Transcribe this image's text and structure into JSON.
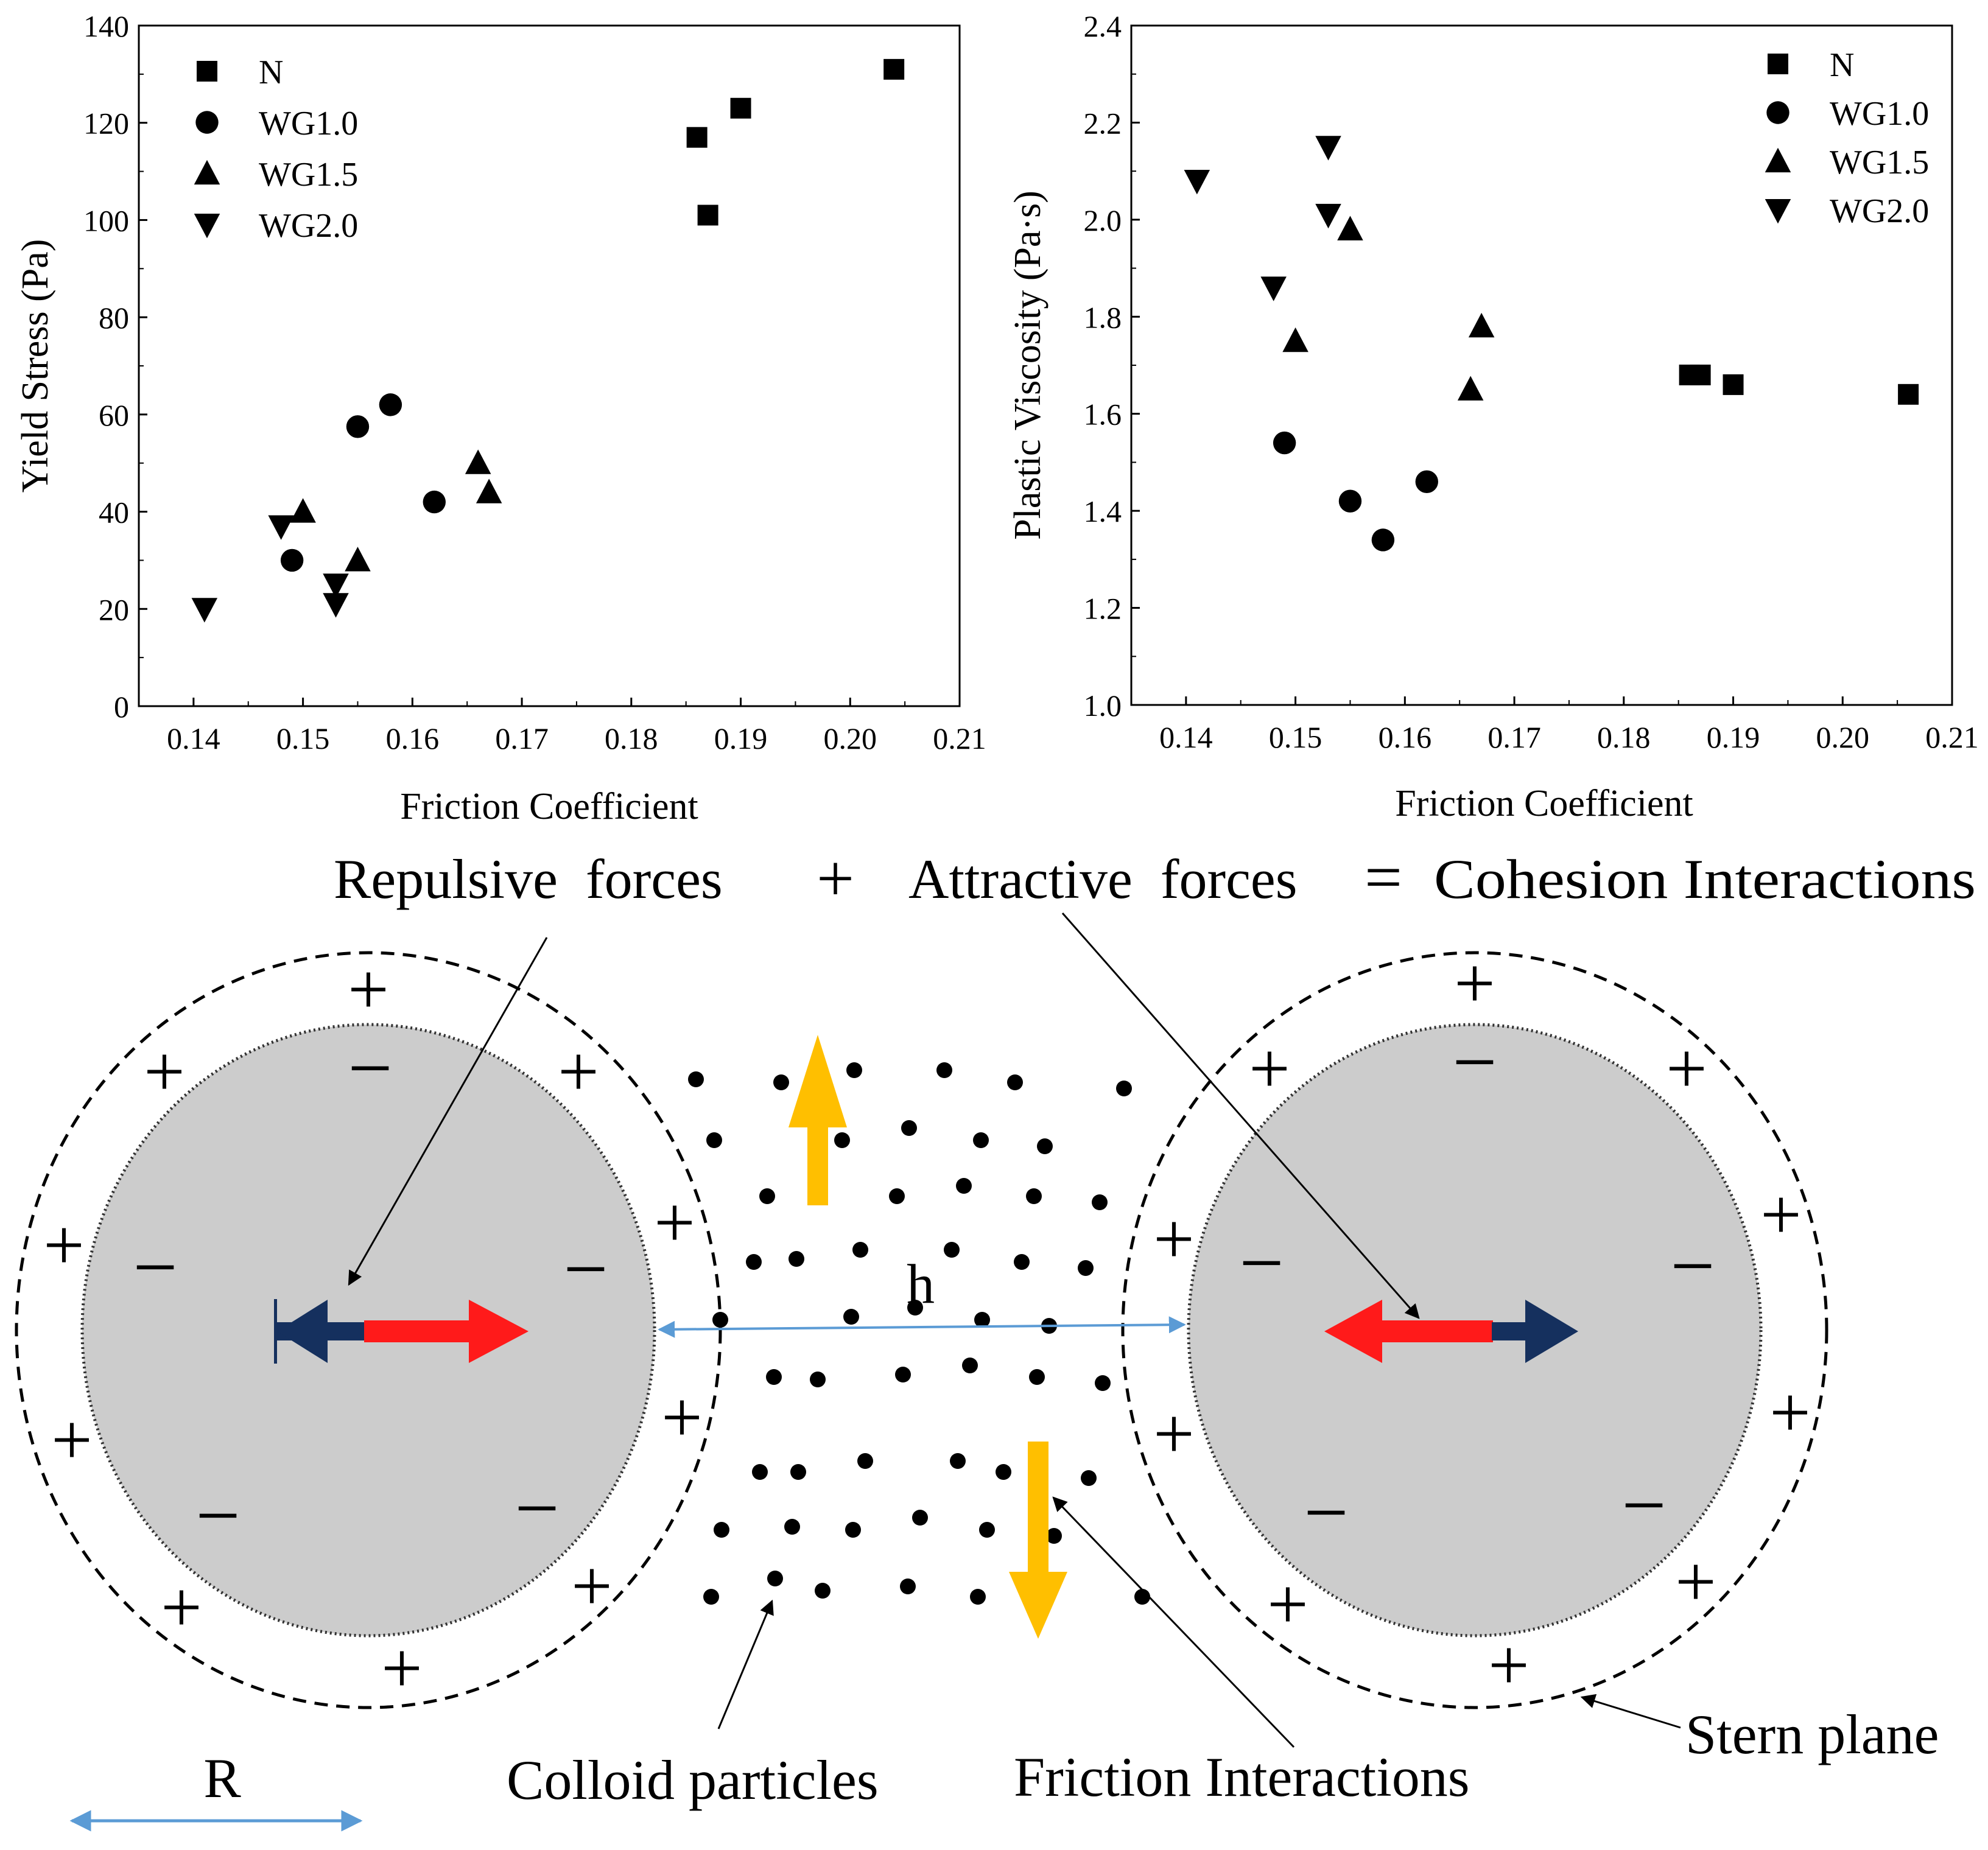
{
  "chart_data": [
    {
      "type": "scatter",
      "title": "",
      "xlabel": "Friction Coefficient",
      "ylabel": "Yield Stress (Pa)",
      "xlim": [
        0.135,
        0.21
      ],
      "ylim": [
        0,
        140
      ],
      "xticks": [
        "0.14",
        "0.15",
        "0.16",
        "0.17",
        "0.18",
        "0.19",
        "0.20",
        "0.21"
      ],
      "yticks": [
        "0",
        "20",
        "40",
        "60",
        "80",
        "100",
        "120",
        "140"
      ],
      "legend_position": "top-left",
      "series": [
        {
          "name": "N",
          "marker": "square",
          "points": [
            [
              0.186,
              117
            ],
            [
              0.187,
              101
            ],
            [
              0.19,
              123
            ],
            [
              0.204,
              131
            ]
          ]
        },
        {
          "name": "WG1.0",
          "marker": "circle",
          "points": [
            [
              0.149,
              30
            ],
            [
              0.155,
              57.5
            ],
            [
              0.158,
              62
            ],
            [
              0.162,
              42
            ]
          ]
        },
        {
          "name": "WG1.5",
          "marker": "triangle-up",
          "points": [
            [
              0.15,
              40
            ],
            [
              0.155,
              30
            ],
            [
              0.166,
              50
            ],
            [
              0.167,
              44
            ]
          ]
        },
        {
          "name": "WG2.0",
          "marker": "triangle-down",
          "points": [
            [
              0.141,
              20
            ],
            [
              0.148,
              37
            ],
            [
              0.153,
              25
            ],
            [
              0.153,
              21
            ]
          ]
        }
      ]
    },
    {
      "type": "scatter",
      "title": "",
      "xlabel": "Friction Coefficient",
      "ylabel": "Plastic Viscosity (Pa·s)",
      "xlim": [
        0.135,
        0.21
      ],
      "ylim": [
        1.0,
        2.4
      ],
      "xticks": [
        "0.14",
        "0.15",
        "0.16",
        "0.17",
        "0.18",
        "0.19",
        "0.20",
        "0.21"
      ],
      "yticks": [
        "1.0",
        "1.2",
        "1.4",
        "1.6",
        "1.8",
        "2.0",
        "2.2",
        "2.4"
      ],
      "legend_position": "top-right",
      "series": [
        {
          "name": "N",
          "marker": "square",
          "points": [
            [
              0.186,
              1.68
            ],
            [
              0.187,
              1.68
            ],
            [
              0.19,
              1.66
            ],
            [
              0.206,
              1.64
            ]
          ]
        },
        {
          "name": "WG1.0",
          "marker": "circle",
          "points": [
            [
              0.149,
              1.54
            ],
            [
              0.155,
              1.42
            ],
            [
              0.158,
              1.34
            ],
            [
              0.162,
              1.46
            ]
          ]
        },
        {
          "name": "WG1.5",
          "marker": "triangle-up",
          "points": [
            [
              0.15,
              1.75
            ],
            [
              0.155,
              1.98
            ],
            [
              0.166,
              1.65
            ],
            [
              0.167,
              1.78
            ]
          ]
        },
        {
          "name": "WG2.0",
          "marker": "triangle-down",
          "points": [
            [
              0.141,
              2.08
            ],
            [
              0.148,
              1.86
            ],
            [
              0.153,
              2.15
            ],
            [
              0.153,
              2.01
            ]
          ]
        }
      ]
    }
  ],
  "diagram": {
    "equation": {
      "term1": "Repulsive  forces",
      "plus": "+",
      "term2": "Attractive  forces",
      "equals": "=",
      "result": "Cohesion Interactions"
    },
    "gap_label": "h",
    "radius_label": "R",
    "colloid_label": "Colloid particles",
    "friction_label": "Friction Interactions",
    "stern_label": "Stern plane",
    "plus_symbol": "+",
    "minus_symbol": "−",
    "colors": {
      "particle_fill": "#cccccc",
      "repulsive_arrow": "#ff1a1a",
      "attractive_arrow": "#15305e",
      "friction_arrow": "#ffbf00",
      "dimension_arrow": "#5b9bd5"
    }
  }
}
